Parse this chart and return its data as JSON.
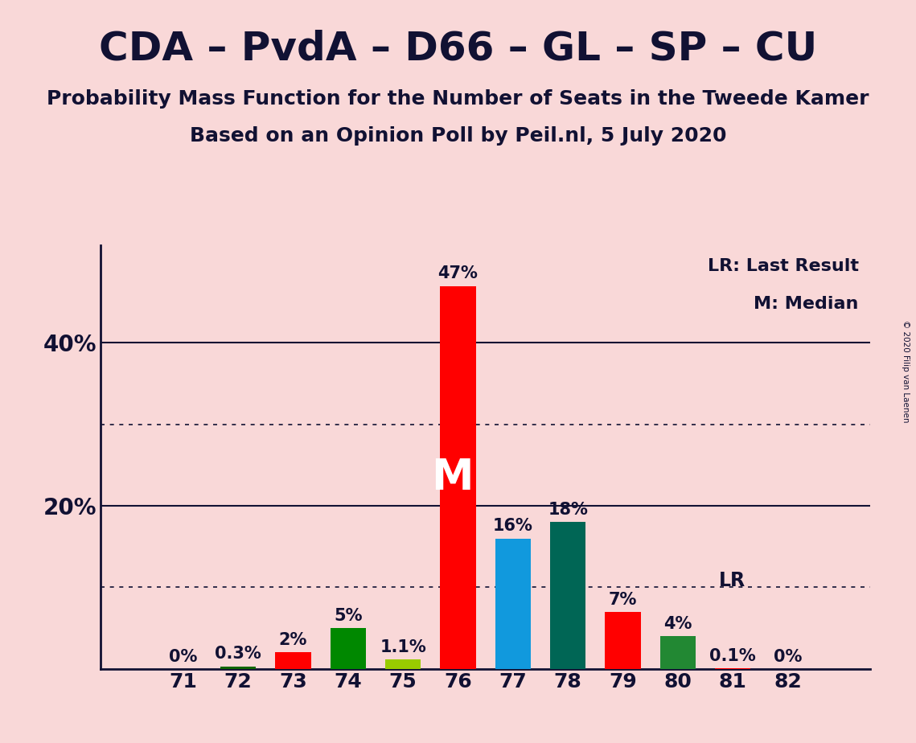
{
  "title": "CDA – PvdA – D66 – GL – SP – CU",
  "subtitle1": "Probability Mass Function for the Number of Seats in the Tweede Kamer",
  "subtitle2": "Based on an Opinion Poll by Peil.nl, 5 July 2020",
  "copyright": "© 2020 Filip van Laenen",
  "seats": [
    71,
    72,
    73,
    74,
    75,
    76,
    77,
    78,
    79,
    80,
    81,
    82
  ],
  "values": [
    0.0,
    0.3,
    2.0,
    5.0,
    1.1,
    47.0,
    16.0,
    18.0,
    7.0,
    4.0,
    0.1,
    0.0
  ],
  "labels": [
    "0%",
    "0.3%",
    "2%",
    "5%",
    "1.1%",
    "47%",
    "16%",
    "18%",
    "7%",
    "4%",
    "0.1%",
    "0%"
  ],
  "colors": [
    "#ff0000",
    "#116600",
    "#ff0000",
    "#008800",
    "#99cc00",
    "#ff0000",
    "#1199dd",
    "#006655",
    "#ff0000",
    "#228833",
    "#ff0000",
    "#ff0000"
  ],
  "background_color": "#f9d8d8",
  "median_seat": 76,
  "lr_seat": 80,
  "legend_lr": "LR: Last Result",
  "legend_m": "M: Median",
  "ylim": [
    0,
    52
  ],
  "solid_yticks": [
    20,
    40
  ],
  "dotted_yticks": [
    10,
    30
  ],
  "ytick_labels_pos": [
    20,
    40
  ],
  "ytick_labels_text": [
    "20%",
    "40%"
  ],
  "title_fontsize": 36,
  "subtitle_fontsize": 18,
  "label_fontsize": 15,
  "bar_width": 0.65,
  "text_color": "#111133"
}
